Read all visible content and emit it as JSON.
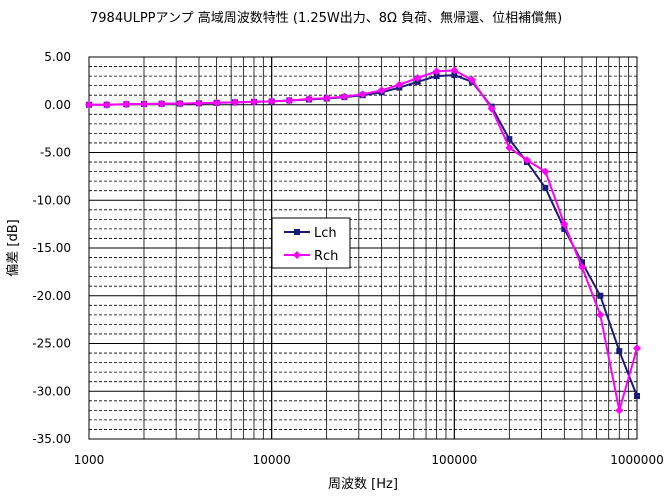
{
  "chart_data": {
    "type": "line",
    "title": "7984ULPPアンプ 高域周波数特性 (1.25W出力、8Ω 負荷、無帰還、位相補償無)",
    "xlabel": "周波数 [Hz]",
    "ylabel": "偏差 [dB]",
    "xscale": "log",
    "xlim": [
      1000,
      1000000
    ],
    "ylim": [
      -35,
      5
    ],
    "x_ticks": [
      "1000",
      "10000",
      "100000",
      "1000000"
    ],
    "y_ticks": [
      "5.00",
      "0.00",
      "-5.00",
      "-10.00",
      "-15.00",
      "-20.00",
      "-25.00",
      "-30.00",
      "-35.00"
    ],
    "grid": "on",
    "legend_position": "center-left",
    "series": [
      {
        "name": "Lch",
        "color": "#1a1a7a",
        "marker": "square",
        "x": [
          1000,
          1250,
          1600,
          2000,
          2500,
          3150,
          4000,
          5000,
          6300,
          8000,
          10000,
          12500,
          16000,
          20000,
          25000,
          31500,
          40000,
          50000,
          63000,
          80000,
          100000,
          125000,
          160000,
          200000,
          250000,
          315000,
          400000,
          500000,
          630000,
          800000,
          1000000
        ],
        "values": [
          0.0,
          0.0,
          0.05,
          0.08,
          0.1,
          0.12,
          0.15,
          0.2,
          0.25,
          0.3,
          0.35,
          0.45,
          0.55,
          0.65,
          0.8,
          1.0,
          1.3,
          1.8,
          2.4,
          3.0,
          3.1,
          2.4,
          -0.2,
          -3.6,
          -6.0,
          -8.7,
          -13.0,
          -16.5,
          -20.0,
          -25.8,
          -30.5
        ]
      },
      {
        "name": "Rch",
        "color": "#ff00ff",
        "marker": "diamond",
        "x": [
          1000,
          1250,
          1600,
          2000,
          2500,
          3150,
          4000,
          5000,
          6300,
          8000,
          10000,
          12500,
          16000,
          20000,
          25000,
          31500,
          40000,
          50000,
          63000,
          80000,
          100000,
          125000,
          160000,
          200000,
          250000,
          315000,
          400000,
          500000,
          630000,
          800000,
          1000000
        ],
        "values": [
          0.0,
          0.0,
          0.05,
          0.08,
          0.1,
          0.12,
          0.15,
          0.2,
          0.25,
          0.3,
          0.35,
          0.45,
          0.6,
          0.7,
          0.85,
          1.1,
          1.5,
          2.1,
          2.8,
          3.5,
          3.6,
          2.6,
          -0.4,
          -4.5,
          -5.8,
          -7.0,
          -12.5,
          -17.0,
          -22.0,
          -32.0,
          -25.5
        ]
      }
    ]
  }
}
